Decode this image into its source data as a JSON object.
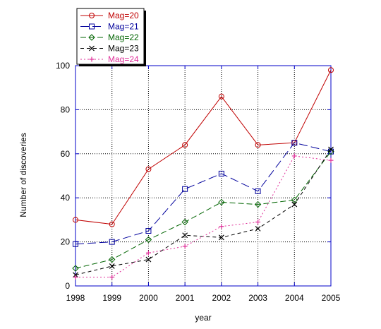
{
  "chart_data": {
    "type": "line",
    "title": "",
    "xlabel": "year",
    "ylabel": "Number of discoveries",
    "x": [
      1998,
      1999,
      2000,
      2001,
      2002,
      2003,
      2004,
      2005
    ],
    "xlim": [
      1998,
      2005
    ],
    "ylim": [
      0,
      100
    ],
    "yticks": [
      0,
      20,
      40,
      60,
      80,
      100
    ],
    "grid": true,
    "legend_position": "top-left, outside plot area",
    "series": [
      {
        "name": "Mag=20",
        "color": "#c00000",
        "marker": "circle",
        "dash": "solid",
        "values": [
          30,
          28,
          53,
          64,
          86,
          64,
          65,
          98
        ]
      },
      {
        "name": "Mag=21",
        "color": "#00009c",
        "marker": "square",
        "dash": "long-dash",
        "values": [
          19,
          20,
          25,
          44,
          51,
          43,
          65,
          61
        ]
      },
      {
        "name": "Mag=22",
        "color": "#006400",
        "marker": "diamond",
        "dash": "dash",
        "values": [
          8,
          12,
          21,
          29,
          38,
          37,
          39,
          61
        ]
      },
      {
        "name": "Mag=23",
        "color": "#000000",
        "marker": "x",
        "dash": "short-dash",
        "values": [
          5,
          9,
          12,
          23,
          22,
          26,
          37,
          62
        ]
      },
      {
        "name": "Mag=24",
        "color": "#e0309a",
        "marker": "plus",
        "dash": "dot",
        "values": [
          4,
          4,
          15,
          18,
          27,
          29,
          59,
          57
        ]
      }
    ]
  }
}
